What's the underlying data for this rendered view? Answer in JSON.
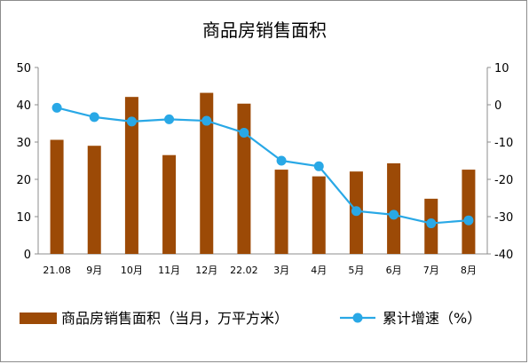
{
  "chart_data": {
    "type": "bar",
    "title": "商品房销售面积",
    "categories": [
      "21.08",
      "9月",
      "10月",
      "11月",
      "12月",
      "22.02",
      "3月",
      "4月",
      "5月",
      "6月",
      "7月",
      "8月"
    ],
    "series": [
      {
        "name": "商品房销售面积（当月，万平方米）",
        "type": "bar",
        "axis": "left",
        "color": "#9c4a06",
        "values": [
          30.6,
          29.0,
          42.1,
          26.5,
          43.2,
          40.3,
          22.6,
          20.8,
          22.1,
          24.3,
          14.8,
          22.6
        ]
      },
      {
        "name": "累计增速（%）",
        "type": "line",
        "axis": "right",
        "color": "#29a8e6",
        "values": [
          -0.8,
          -3.3,
          -4.5,
          -3.9,
          -4.3,
          -7.5,
          -15.0,
          -16.5,
          -28.5,
          -29.5,
          -31.8,
          -31.0
        ]
      }
    ],
    "y_left": {
      "range": [
        0,
        50
      ],
      "ticks": [
        0,
        10,
        20,
        30,
        40,
        50
      ]
    },
    "y_right": {
      "range": [
        -40,
        10
      ],
      "ticks": [
        -40,
        -30,
        -20,
        -10,
        0,
        10
      ]
    },
    "legend_position": "bottom",
    "grid": false
  }
}
